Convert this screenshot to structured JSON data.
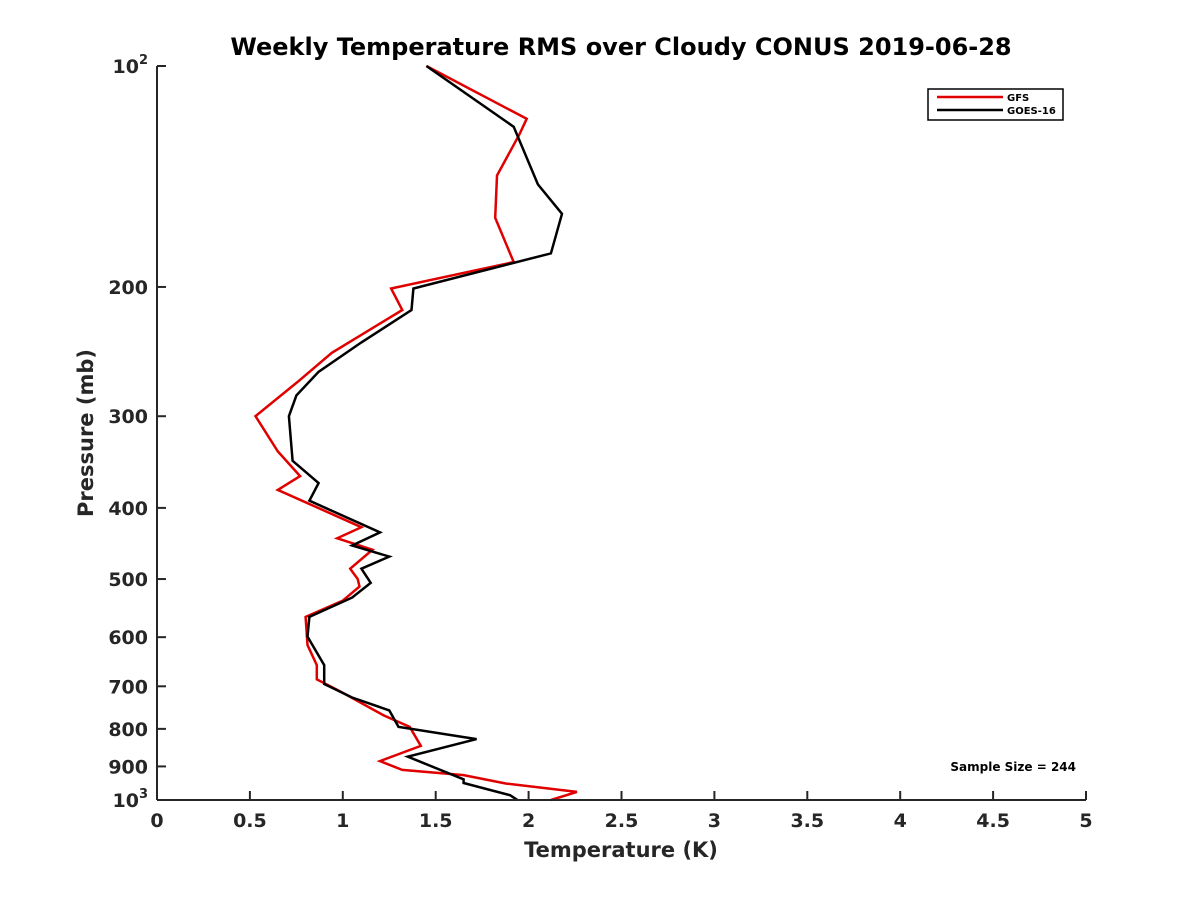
{
  "chart_data": {
    "type": "line",
    "title": "Weekly Temperature RMS over Cloudy CONUS 2019-06-28",
    "xlabel": "Temperature (K)",
    "ylabel": "Pressure (mb)",
    "xlim": [
      0,
      5
    ],
    "ylim": [
      100,
      1000
    ],
    "yscale": "log",
    "y_reversed": true,
    "x_ticks": [
      0,
      0.5,
      1,
      1.5,
      2,
      2.5,
      3,
      3.5,
      4,
      4.5,
      5
    ],
    "x_tick_labels": [
      "0",
      "0.5",
      "1",
      "1.5",
      "2",
      "2.5",
      "3",
      "3.5",
      "4",
      "4.5",
      "5"
    ],
    "y_ticks": [
      100,
      200,
      300,
      400,
      500,
      600,
      700,
      800,
      900,
      1000
    ],
    "y_tick_labels": [
      {
        "base": "10",
        "exp": "2"
      },
      {
        "base": "200",
        "exp": ""
      },
      {
        "base": "300",
        "exp": ""
      },
      {
        "base": "400",
        "exp": ""
      },
      {
        "base": "500",
        "exp": ""
      },
      {
        "base": "600",
        "exp": ""
      },
      {
        "base": "700",
        "exp": ""
      },
      {
        "base": "800",
        "exp": ""
      },
      {
        "base": "900",
        "exp": ""
      },
      {
        "base": "10",
        "exp": "3"
      }
    ],
    "legend_position": "top-right",
    "series": [
      {
        "name": "GFS",
        "color": "#e00000",
        "points": [
          [
            1.45,
            100
          ],
          [
            1.99,
            118
          ],
          [
            1.95,
            124
          ],
          [
            1.83,
            141
          ],
          [
            1.82,
            161
          ],
          [
            1.92,
            185
          ],
          [
            1.26,
            201
          ],
          [
            1.32,
            215
          ],
          [
            0.94,
            246
          ],
          [
            0.76,
            269
          ],
          [
            0.53,
            300
          ],
          [
            0.65,
            335
          ],
          [
            0.77,
            362
          ],
          [
            0.65,
            378
          ],
          [
            1.1,
            425
          ],
          [
            0.97,
            440
          ],
          [
            1.16,
            456
          ],
          [
            1.04,
            484
          ],
          [
            1.08,
            500
          ],
          [
            1.09,
            512
          ],
          [
            1.0,
            535
          ],
          [
            0.8,
            563
          ],
          [
            0.81,
            615
          ],
          [
            0.86,
            655
          ],
          [
            0.86,
            685
          ],
          [
            0.98,
            710
          ],
          [
            1.22,
            767
          ],
          [
            1.36,
            795
          ],
          [
            1.42,
            844
          ],
          [
            1.2,
            885
          ],
          [
            1.32,
            910
          ],
          [
            1.65,
            925
          ],
          [
            1.88,
            950
          ],
          [
            2.26,
            975
          ],
          [
            2.12,
            1000
          ]
        ]
      },
      {
        "name": "GOES-16",
        "color": "#000000",
        "points": [
          [
            1.45,
            100
          ],
          [
            1.92,
            121
          ],
          [
            2.05,
            145
          ],
          [
            2.18,
            159
          ],
          [
            2.12,
            180
          ],
          [
            1.38,
            201
          ],
          [
            1.37,
            215
          ],
          [
            1.1,
            238
          ],
          [
            0.87,
            261
          ],
          [
            0.75,
            281
          ],
          [
            0.71,
            300
          ],
          [
            0.73,
            345
          ],
          [
            0.87,
            370
          ],
          [
            0.82,
            391
          ],
          [
            1.2,
            432
          ],
          [
            1.05,
            450
          ],
          [
            1.25,
            466
          ],
          [
            1.1,
            484
          ],
          [
            1.15,
            506
          ],
          [
            1.05,
            530
          ],
          [
            0.82,
            563
          ],
          [
            0.81,
            599
          ],
          [
            0.9,
            655
          ],
          [
            0.9,
            695
          ],
          [
            1.05,
            725
          ],
          [
            1.25,
            755
          ],
          [
            1.3,
            795
          ],
          [
            1.72,
            826
          ],
          [
            1.35,
            873
          ],
          [
            1.65,
            937
          ],
          [
            1.65,
            948
          ],
          [
            1.9,
            985
          ],
          [
            1.94,
            1000
          ]
        ]
      }
    ],
    "annotation": "Sample Size = 244"
  }
}
